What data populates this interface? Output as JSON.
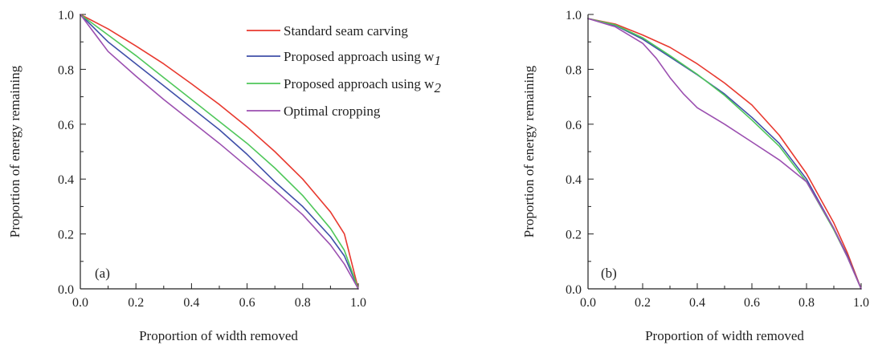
{
  "chart_data": [
    {
      "type": "line",
      "panel_label": "(a)",
      "xlabel": "Proportion of width removed",
      "ylabel": "Proportion of energy remaining",
      "xlim": [
        0,
        1
      ],
      "ylim": [
        0,
        1
      ],
      "xticks": [
        "0.0",
        "0.2",
        "0.4",
        "0.6",
        "0.8",
        "1.0"
      ],
      "yticks": [
        "0.0",
        "0.2",
        "0.4",
        "0.6",
        "0.8",
        "1.0"
      ],
      "legend_placement": "top-right",
      "series": [
        {
          "name": "Standard seam carving",
          "color": "#e8392f",
          "x": [
            0,
            0.1,
            0.2,
            0.3,
            0.4,
            0.5,
            0.6,
            0.7,
            0.8,
            0.9,
            0.95,
            1.0
          ],
          "y": [
            1.0,
            0.947,
            0.885,
            0.82,
            0.747,
            0.672,
            0.59,
            0.5,
            0.4,
            0.28,
            0.2,
            0.0
          ]
        },
        {
          "name": "Proposed approach using w",
          "name_subscript": "1",
          "color": "#3f4fa8",
          "x": [
            0,
            0.1,
            0.2,
            0.3,
            0.4,
            0.5,
            0.6,
            0.7,
            0.8,
            0.9,
            0.95,
            1.0
          ],
          "y": [
            1.0,
            0.9,
            0.82,
            0.74,
            0.66,
            0.58,
            0.49,
            0.39,
            0.3,
            0.19,
            0.12,
            0.0
          ]
        },
        {
          "name": "Proposed approach using w",
          "name_subscript": "2",
          "color": "#4fc75a",
          "x": [
            0,
            0.1,
            0.2,
            0.3,
            0.4,
            0.5,
            0.6,
            0.7,
            0.8,
            0.9,
            0.95,
            1.0
          ],
          "y": [
            1.0,
            0.925,
            0.85,
            0.77,
            0.69,
            0.61,
            0.53,
            0.44,
            0.34,
            0.22,
            0.14,
            0.0
          ]
        },
        {
          "name": "Optimal cropping",
          "color": "#9b4fb0",
          "x": [
            0,
            0.1,
            0.2,
            0.3,
            0.4,
            0.5,
            0.6,
            0.7,
            0.8,
            0.9,
            0.95,
            1.0
          ],
          "y": [
            1.0,
            0.865,
            0.775,
            0.69,
            0.61,
            0.53,
            0.445,
            0.36,
            0.27,
            0.16,
            0.09,
            0.0
          ]
        }
      ]
    },
    {
      "type": "line",
      "panel_label": "(b)",
      "xlabel": "Proportion of width removed",
      "ylabel": "Proportion of energy remaining",
      "xlim": [
        0,
        1
      ],
      "ylim": [
        0,
        1
      ],
      "xticks": [
        "0.0",
        "0.2",
        "0.4",
        "0.6",
        "0.8",
        "1.0"
      ],
      "yticks": [
        "0.0",
        "0.2",
        "0.4",
        "0.6",
        "0.8",
        "1.0"
      ],
      "series": [
        {
          "name": "Standard seam carving",
          "color": "#e8392f",
          "x": [
            0,
            0.1,
            0.2,
            0.3,
            0.4,
            0.5,
            0.6,
            0.7,
            0.8,
            0.9,
            0.95,
            1.0
          ],
          "y": [
            0.985,
            0.965,
            0.925,
            0.88,
            0.82,
            0.75,
            0.67,
            0.56,
            0.42,
            0.24,
            0.13,
            0.0
          ]
        },
        {
          "name": "Proposed approach using w",
          "name_subscript": "1",
          "color": "#3f4fa8",
          "x": [
            0,
            0.1,
            0.2,
            0.3,
            0.4,
            0.5,
            0.6,
            0.7,
            0.8,
            0.9,
            0.95,
            1.0
          ],
          "y": [
            0.985,
            0.96,
            0.91,
            0.845,
            0.78,
            0.71,
            0.625,
            0.53,
            0.4,
            0.22,
            0.12,
            0.0
          ]
        },
        {
          "name": "Proposed approach using w",
          "name_subscript": "2",
          "color": "#4fc75a",
          "x": [
            0,
            0.1,
            0.2,
            0.3,
            0.4,
            0.5,
            0.6,
            0.7,
            0.8,
            0.9,
            0.95,
            1.0
          ],
          "y": [
            0.985,
            0.962,
            0.915,
            0.85,
            0.782,
            0.705,
            0.615,
            0.52,
            0.39,
            0.215,
            0.115,
            0.0
          ]
        },
        {
          "name": "Optimal cropping",
          "color": "#9b4fb0",
          "x": [
            0,
            0.1,
            0.2,
            0.25,
            0.3,
            0.35,
            0.4,
            0.5,
            0.6,
            0.7,
            0.8,
            0.9,
            0.95,
            1.0
          ],
          "y": [
            0.985,
            0.955,
            0.895,
            0.84,
            0.77,
            0.71,
            0.66,
            0.6,
            0.535,
            0.47,
            0.39,
            0.22,
            0.115,
            0.0
          ]
        }
      ]
    }
  ]
}
